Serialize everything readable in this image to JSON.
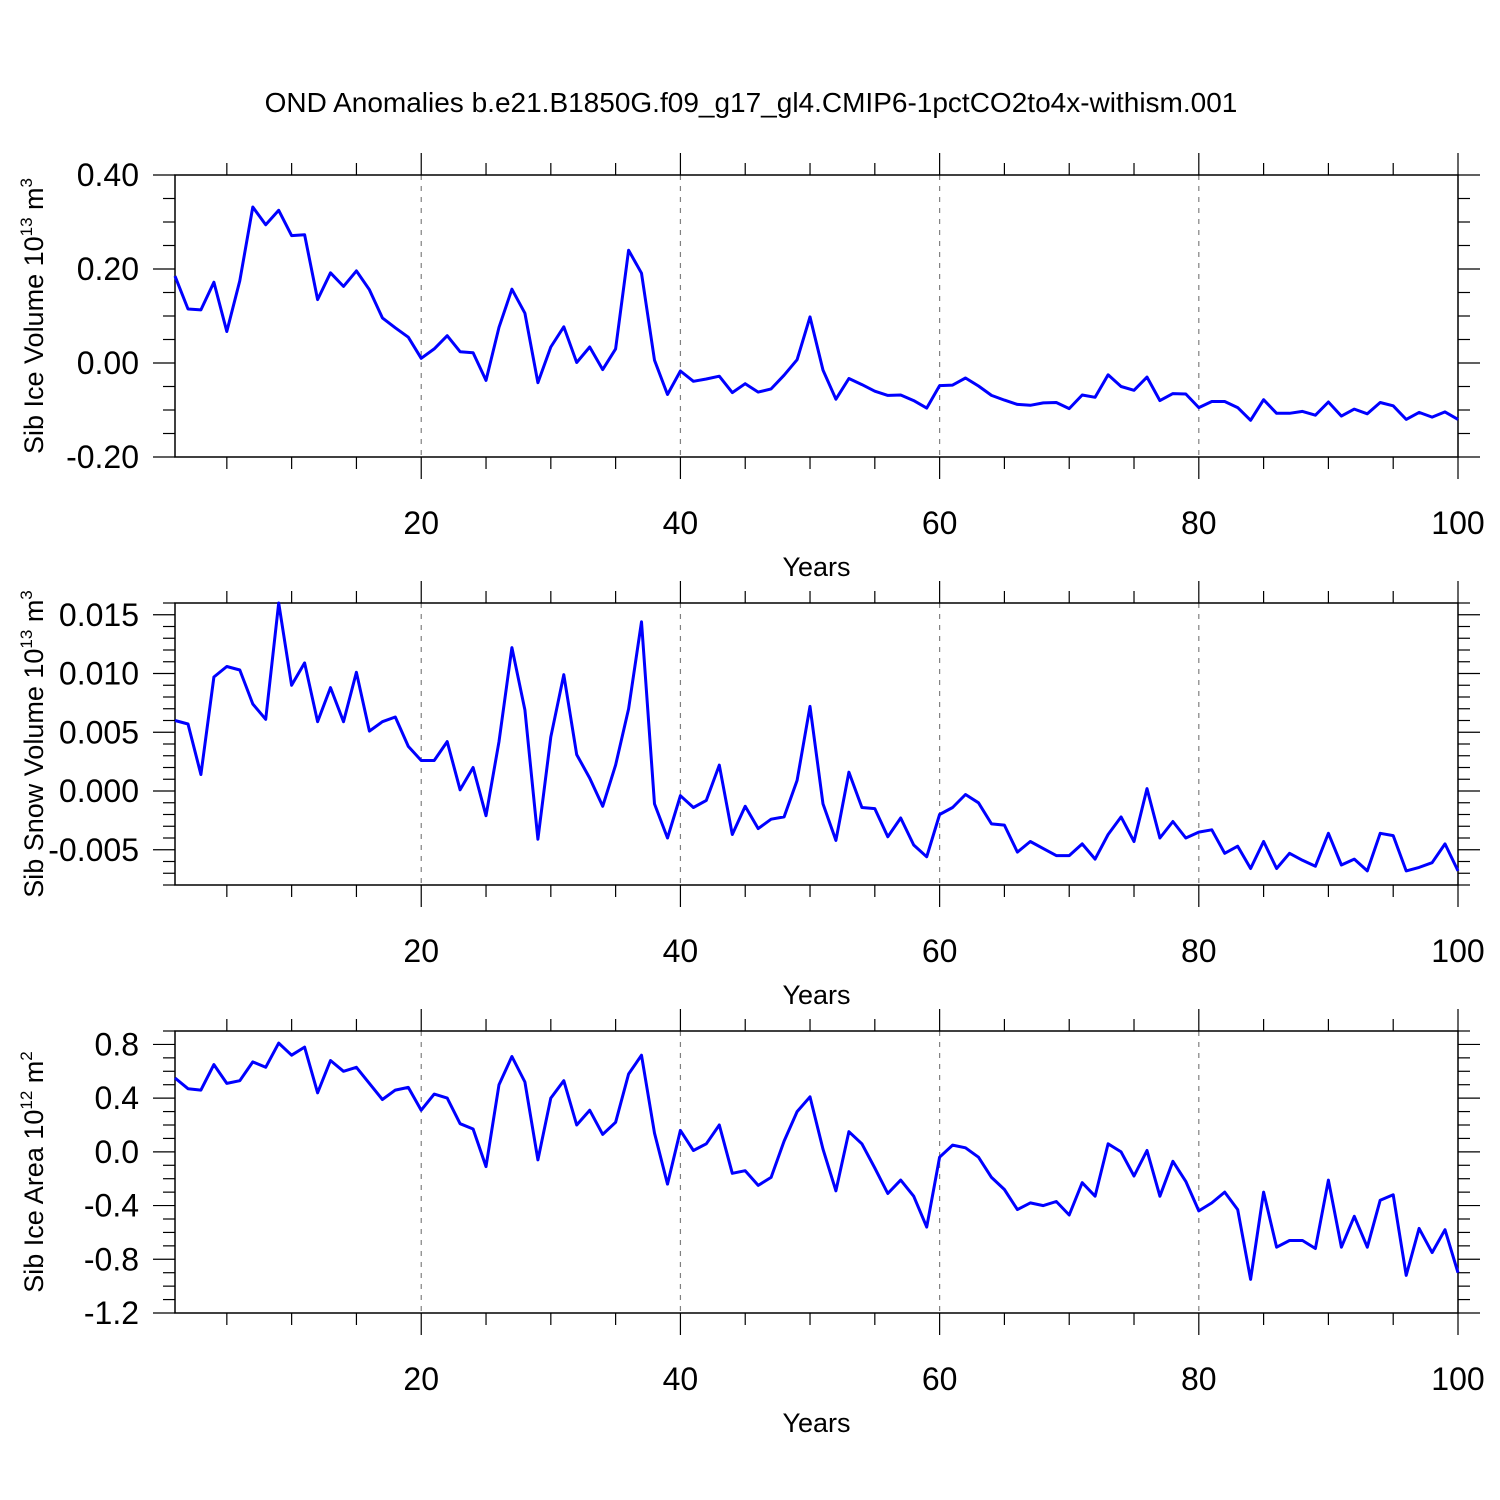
{
  "title": "OND Anomalies b.e21.B1850G.f09_g17_gl4.CMIP6-1pctCO2to4x-withism.001",
  "colors": {
    "line": "#0000ff",
    "grid": "#808080",
    "frame": "#000000"
  },
  "chart_data": [
    {
      "type": "line",
      "ylabel": "Sib Ice Volume 10",
      "ylabel_exp": "13",
      "ylabel_unit": " m",
      "ylabel_unit_exp": "3",
      "xlabel": "Years",
      "xlim": [
        1,
        100
      ],
      "ylim": [
        -0.2,
        0.4
      ],
      "y_major_ticks": [
        -0.2,
        0.0,
        0.2,
        0.4
      ],
      "y_tick_labels": [
        "-0.20",
        "0.00",
        "0.20",
        "0.40"
      ],
      "y_minor_step": 0.05,
      "x_major_ticks": [
        20,
        40,
        60,
        80,
        100
      ],
      "x_tick_labels": [
        "20",
        "40",
        "60",
        "80",
        "100"
      ],
      "grid": "dashed vertical at x major ticks",
      "series": [
        {
          "x": [
            1,
            2,
            3,
            4,
            5,
            6,
            7,
            8,
            9,
            10,
            11,
            12,
            13,
            14,
            15,
            16,
            17,
            18,
            19,
            20,
            21,
            22,
            23,
            24,
            25,
            26,
            27,
            28,
            29,
            30,
            31,
            32,
            33,
            34,
            35,
            36,
            37,
            38,
            39,
            40,
            41,
            42,
            43,
            44,
            45,
            46,
            47,
            48,
            49,
            50,
            51,
            52,
            53,
            54,
            55,
            56,
            57,
            58,
            59,
            60,
            61,
            62,
            63,
            64,
            65,
            66,
            67,
            68,
            69,
            70,
            71,
            72,
            73,
            74,
            75,
            76,
            77,
            78,
            79,
            80,
            81,
            82,
            83,
            84,
            85,
            86,
            87,
            88,
            89,
            90,
            91,
            92,
            93,
            94,
            95,
            96,
            97,
            98,
            99,
            100
          ],
          "values": [
            0.185,
            0.115,
            0.113,
            0.172,
            0.067,
            0.175,
            0.332,
            0.294,
            0.325,
            0.271,
            0.273,
            0.135,
            0.192,
            0.163,
            0.196,
            0.156,
            0.096,
            0.075,
            0.055,
            0.01,
            0.03,
            0.058,
            0.024,
            0.022,
            -0.037,
            0.076,
            0.157,
            0.106,
            -0.042,
            0.034,
            0.077,
            0.001,
            0.034,
            -0.014,
            0.03,
            0.24,
            0.191,
            0.006,
            -0.067,
            -0.017,
            -0.039,
            -0.034,
            -0.028,
            -0.063,
            -0.044,
            -0.062,
            -0.055,
            -0.026,
            0.007,
            0.098,
            -0.015,
            -0.077,
            -0.033,
            -0.046,
            -0.06,
            -0.069,
            -0.068,
            -0.08,
            -0.096,
            -0.048,
            -0.047,
            -0.032,
            -0.049,
            -0.069,
            -0.079,
            -0.088,
            -0.09,
            -0.085,
            -0.084,
            -0.097,
            -0.068,
            -0.073,
            -0.025,
            -0.05,
            -0.058,
            -0.03,
            -0.08,
            -0.065,
            -0.066,
            -0.095,
            -0.082,
            -0.082,
            -0.095,
            -0.122,
            -0.078,
            -0.107,
            -0.107,
            -0.103,
            -0.111,
            -0.083,
            -0.113,
            -0.098,
            -0.108,
            -0.084,
            -0.091,
            -0.12,
            -0.105,
            -0.115,
            -0.104,
            -0.12
          ]
        }
      ]
    },
    {
      "type": "line",
      "ylabel": "Sib Snow Volume 10",
      "ylabel_exp": "13",
      "ylabel_unit": " m",
      "ylabel_unit_exp": "3",
      "xlabel": "Years",
      "xlim": [
        1,
        100
      ],
      "ylim": [
        -0.008,
        0.016
      ],
      "y_major_ticks": [
        -0.005,
        0.0,
        0.005,
        0.01,
        0.015
      ],
      "y_tick_labels": [
        "-0.005",
        "0.000",
        "0.005",
        "0.010",
        "0.015"
      ],
      "y_minor_step": 0.001,
      "x_major_ticks": [
        20,
        40,
        60,
        80,
        100
      ],
      "x_tick_labels": [
        "20",
        "40",
        "60",
        "80",
        "100"
      ],
      "grid": "dashed vertical at x major ticks",
      "series": [
        {
          "x": [
            1,
            2,
            3,
            4,
            5,
            6,
            7,
            8,
            9,
            10,
            11,
            12,
            13,
            14,
            15,
            16,
            17,
            18,
            19,
            20,
            21,
            22,
            23,
            24,
            25,
            26,
            27,
            28,
            29,
            30,
            31,
            32,
            33,
            34,
            35,
            36,
            37,
            38,
            39,
            40,
            41,
            42,
            43,
            44,
            45,
            46,
            47,
            48,
            49,
            50,
            51,
            52,
            53,
            54,
            55,
            56,
            57,
            58,
            59,
            60,
            61,
            62,
            63,
            64,
            65,
            66,
            67,
            68,
            69,
            70,
            71,
            72,
            73,
            74,
            75,
            76,
            77,
            78,
            79,
            80,
            81,
            82,
            83,
            84,
            85,
            86,
            87,
            88,
            89,
            90,
            91,
            92,
            93,
            94,
            95,
            96,
            97,
            98,
            99,
            100
          ],
          "values": [
            0.006,
            0.0057,
            0.0014,
            0.0097,
            0.0106,
            0.0103,
            0.0074,
            0.0061,
            0.016,
            0.009,
            0.0109,
            0.0059,
            0.0088,
            0.0059,
            0.0101,
            0.0051,
            0.0059,
            0.0063,
            0.0038,
            0.0026,
            0.0026,
            0.0042,
            0.0001,
            0.002,
            -0.0021,
            0.0042,
            0.0122,
            0.0069,
            -0.0041,
            0.0046,
            0.0099,
            0.0031,
            0.0011,
            -0.0013,
            0.0022,
            0.007,
            0.0144,
            -0.0011,
            -0.004,
            -0.0004,
            -0.0014,
            -0.0008,
            0.0022,
            -0.0037,
            -0.0013,
            -0.0032,
            -0.0024,
            -0.0022,
            0.0009,
            0.0072,
            -0.0011,
            -0.0042,
            0.0016,
            -0.0014,
            -0.0015,
            -0.0039,
            -0.0023,
            -0.0046,
            -0.0056,
            -0.002,
            -0.0014,
            -0.0003,
            -0.001,
            -0.0028,
            -0.0029,
            -0.0052,
            -0.0043,
            -0.0049,
            -0.0055,
            -0.0055,
            -0.0045,
            -0.0058,
            -0.0037,
            -0.0022,
            -0.0043,
            0.0002,
            -0.004,
            -0.0026,
            -0.004,
            -0.0035,
            -0.0033,
            -0.0053,
            -0.0047,
            -0.0066,
            -0.0043,
            -0.0066,
            -0.0053,
            -0.0059,
            -0.0064,
            -0.0036,
            -0.0063,
            -0.0058,
            -0.0068,
            -0.0036,
            -0.0038,
            -0.0068,
            -0.0065,
            -0.0061,
            -0.0045,
            -0.0068
          ]
        }
      ]
    },
    {
      "type": "line",
      "ylabel": "Sib Ice Area 10",
      "ylabel_exp": "12",
      "ylabel_unit": " m",
      "ylabel_unit_exp": "2",
      "xlabel": "Years",
      "xlim": [
        1,
        100
      ],
      "ylim": [
        -1.2,
        0.9
      ],
      "y_major_ticks": [
        -1.2,
        -0.8,
        -0.4,
        0.0,
        0.4,
        0.8
      ],
      "y_tick_labels": [
        "-1.2",
        "-0.8",
        "-0.4",
        "0.0",
        "0.4",
        "0.8"
      ],
      "y_minor_step": 0.1,
      "x_major_ticks": [
        20,
        40,
        60,
        80,
        100
      ],
      "x_tick_labels": [
        "20",
        "40",
        "60",
        "80",
        "100"
      ],
      "grid": "dashed vertical at x major ticks",
      "series": [
        {
          "x": [
            1,
            2,
            3,
            4,
            5,
            6,
            7,
            8,
            9,
            10,
            11,
            12,
            13,
            14,
            15,
            16,
            17,
            18,
            19,
            20,
            21,
            22,
            23,
            24,
            25,
            26,
            27,
            28,
            29,
            30,
            31,
            32,
            33,
            34,
            35,
            36,
            37,
            38,
            39,
            40,
            41,
            42,
            43,
            44,
            45,
            46,
            47,
            48,
            49,
            50,
            51,
            52,
            53,
            54,
            55,
            56,
            57,
            58,
            59,
            60,
            61,
            62,
            63,
            64,
            65,
            66,
            67,
            68,
            69,
            70,
            71,
            72,
            73,
            74,
            75,
            76,
            77,
            78,
            79,
            80,
            81,
            82,
            83,
            84,
            85,
            86,
            87,
            88,
            89,
            90,
            91,
            92,
            93,
            94,
            95,
            96,
            97,
            98,
            99,
            100
          ],
          "values": [
            0.55,
            0.47,
            0.46,
            0.65,
            0.51,
            0.53,
            0.67,
            0.63,
            0.81,
            0.72,
            0.78,
            0.44,
            0.68,
            0.6,
            0.63,
            0.51,
            0.39,
            0.46,
            0.48,
            0.31,
            0.43,
            0.4,
            0.21,
            0.17,
            -0.11,
            0.5,
            0.71,
            0.52,
            -0.06,
            0.4,
            0.53,
            0.2,
            0.31,
            0.13,
            0.22,
            0.58,
            0.72,
            0.14,
            -0.24,
            0.16,
            0.01,
            0.06,
            0.2,
            -0.16,
            -0.14,
            -0.25,
            -0.19,
            0.08,
            0.3,
            0.41,
            0.02,
            -0.29,
            0.15,
            0.06,
            -0.12,
            -0.31,
            -0.21,
            -0.33,
            -0.56,
            -0.04,
            0.05,
            0.03,
            -0.04,
            -0.19,
            -0.28,
            -0.43,
            -0.38,
            -0.4,
            -0.37,
            -0.47,
            -0.23,
            -0.33,
            0.06,
            0.0,
            -0.18,
            0.01,
            -0.33,
            -0.07,
            -0.22,
            -0.44,
            -0.38,
            -0.3,
            -0.43,
            -0.95,
            -0.3,
            -0.71,
            -0.66,
            -0.66,
            -0.72,
            -0.21,
            -0.71,
            -0.48,
            -0.71,
            -0.36,
            -0.32,
            -0.92,
            -0.57,
            -0.75,
            -0.58,
            -0.9
          ]
        }
      ]
    }
  ]
}
